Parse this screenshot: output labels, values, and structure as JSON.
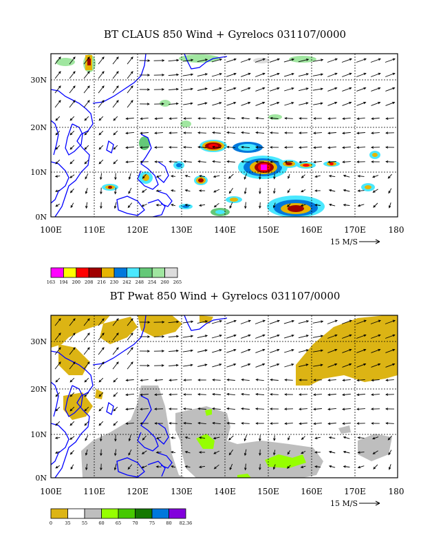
{
  "panels": [
    {
      "title": "BT CLAUS 850 Wind + Gyrelocs 031107/0000",
      "lat_labels": [
        "30N",
        "20N",
        "10N",
        "0N"
      ],
      "lon_labels": [
        "100E",
        "110E",
        "120E",
        "130E",
        "140E",
        "150E",
        "160E",
        "170E",
        "180"
      ],
      "vector_scale_label": "15 M/S",
      "colorbar_colors": [
        "#ff00ff",
        "#ffff00",
        "#ff0000",
        "#a00000",
        "#e6b400",
        "#0078dc",
        "#4ae8ff",
        "#64c878",
        "#a0e6a0",
        "#dcdcdc"
      ],
      "colorbar_labels": [
        "163",
        "194",
        "200",
        "208",
        "216",
        "230",
        "242",
        "248",
        "254",
        "260",
        "265"
      ]
    },
    {
      "title": "BT Pwat 850 Wind + Gyrelocs 031107/0000",
      "lat_labels": [
        "30N",
        "20N",
        "10N",
        "0N"
      ],
      "lon_labels": [
        "100E",
        "110E",
        "120E",
        "130E",
        "140E",
        "150E",
        "160E",
        "170E",
        "180"
      ],
      "vector_scale_label": "15 M/S",
      "colorbar_colors": [
        "#dcb414",
        "#ffffff",
        "#bebebe",
        "#96ff00",
        "#46c800",
        "#147800",
        "#0078dc",
        "#8200dc"
      ],
      "colorbar_labels": [
        "0",
        "35",
        "55",
        "60",
        "65",
        "70",
        "75",
        "80",
        "82.36"
      ]
    }
  ],
  "colors": {
    "coastline": "#0000ff",
    "pwat_dry": "#dcb414",
    "pwat_moist": "#bebebe",
    "pwat_high": "#96ff00",
    "claus_cold": "#ff00ff"
  }
}
